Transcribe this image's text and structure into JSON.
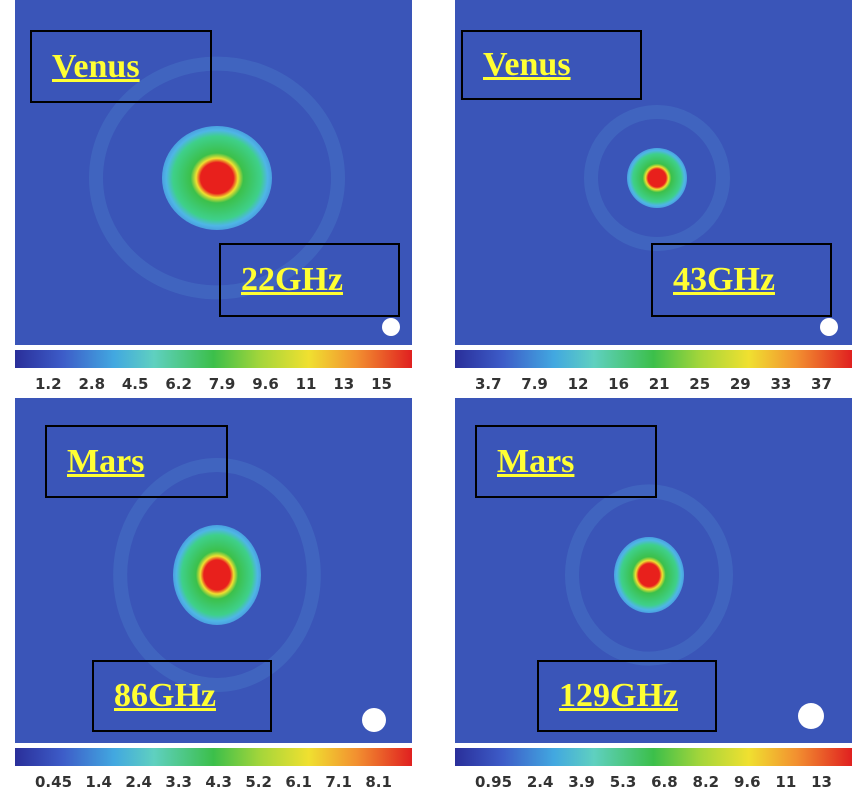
{
  "panels": [
    {
      "planet": "Venus",
      "frequency": "22GHz",
      "colorbar_ticks": [
        "1.2",
        "2.8",
        "4.5",
        "6.2",
        "7.9",
        "9.6",
        "11",
        "13",
        "15"
      ]
    },
    {
      "planet": "Venus",
      "frequency": "43GHz",
      "colorbar_ticks": [
        "3.7",
        "7.9",
        "12",
        "16",
        "21",
        "25",
        "29",
        "33",
        "37"
      ]
    },
    {
      "planet": "Mars",
      "frequency": "86GHz",
      "colorbar_ticks": [
        "0.45",
        "1.4",
        "2.4",
        "3.3",
        "4.3",
        "5.2",
        "6.1",
        "7.1",
        "8.1"
      ]
    },
    {
      "planet": "Mars",
      "frequency": "129GHz",
      "colorbar_ticks": [
        "0.95",
        "2.4",
        "3.9",
        "5.3",
        "6.8",
        "8.2",
        "9.6",
        "11",
        "13"
      ]
    }
  ]
}
